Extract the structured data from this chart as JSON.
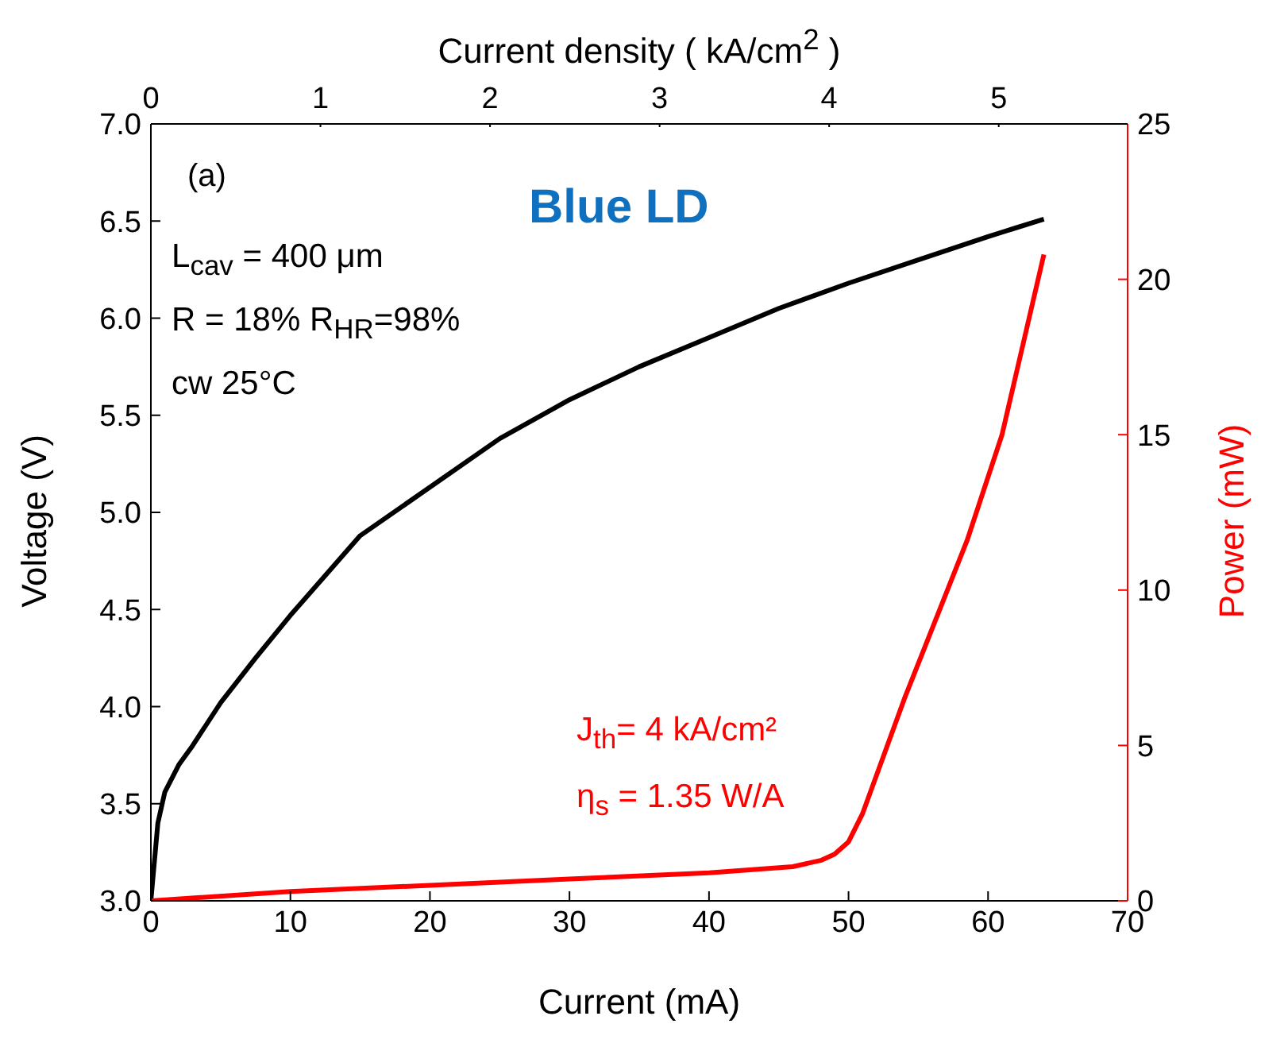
{
  "chart_data": {
    "type": "line",
    "xlabel": "Current (mA)",
    "ylabel": "Voltage (V)",
    "y2label": "Power (mW)",
    "x2label": "Current density ( kA/cm$^{2}$ )",
    "xlim": [
      0,
      70
    ],
    "xticks": [
      0,
      10,
      20,
      30,
      40,
      50,
      60,
      70
    ],
    "x2lim": [
      0,
      5.76
    ],
    "x2ticks": [
      0,
      1,
      2,
      3,
      4,
      5
    ],
    "ylim": [
      3.0,
      7.0
    ],
    "yticks": [
      {
        "value": 3,
        "label": "3.0"
      },
      3.5,
      {
        "value": 4,
        "label": "4.0"
      },
      4.5,
      {
        "value": 5,
        "label": "5.0"
      },
      5.5,
      {
        "value": 6,
        "label": "6.0"
      },
      6.5,
      {
        "value": 7,
        "label": "7.0"
      }
    ],
    "y2lim": [
      0,
      25
    ],
    "y2ticks": [
      0,
      5,
      10,
      15,
      20,
      25
    ],
    "marker": "none",
    "line_style": "solid",
    "series": [
      {
        "color": "#000000",
        "axis": "y",
        "x": [
          0,
          0.5,
          1,
          2,
          3,
          5,
          7.5,
          10,
          15,
          20,
          25,
          30,
          35,
          40,
          45,
          50,
          55,
          60,
          64
        ],
        "values": [
          3.0,
          3.4,
          3.56,
          3.7,
          3.8,
          4.02,
          4.25,
          4.47,
          4.88,
          5.13,
          5.38,
          5.58,
          5.75,
          5.9,
          6.05,
          6.18,
          6.3,
          6.42,
          6.51
        ]
      },
      {
        "color": "#ff0000",
        "axis": "y2",
        "x": [
          0,
          10,
          20,
          30,
          40,
          46,
          48,
          49,
          50,
          51,
          54,
          58.5,
          61,
          64
        ],
        "values": [
          0,
          0.3,
          0.5,
          0.7,
          0.9,
          1.1,
          1.3,
          1.5,
          1.9,
          2.8,
          6.5,
          11.6,
          15,
          20.8
        ]
      }
    ],
    "annotations": [
      "(a)",
      "Blue LD",
      "L$_{cav}$ = 400 μm",
      "R = 18% R$_{HR}$=98%",
      "cw 25°C",
      "J$_{th}$= 4 kA/cm²",
      "η$_{s}$ = 1.35 W/A"
    ]
  }
}
